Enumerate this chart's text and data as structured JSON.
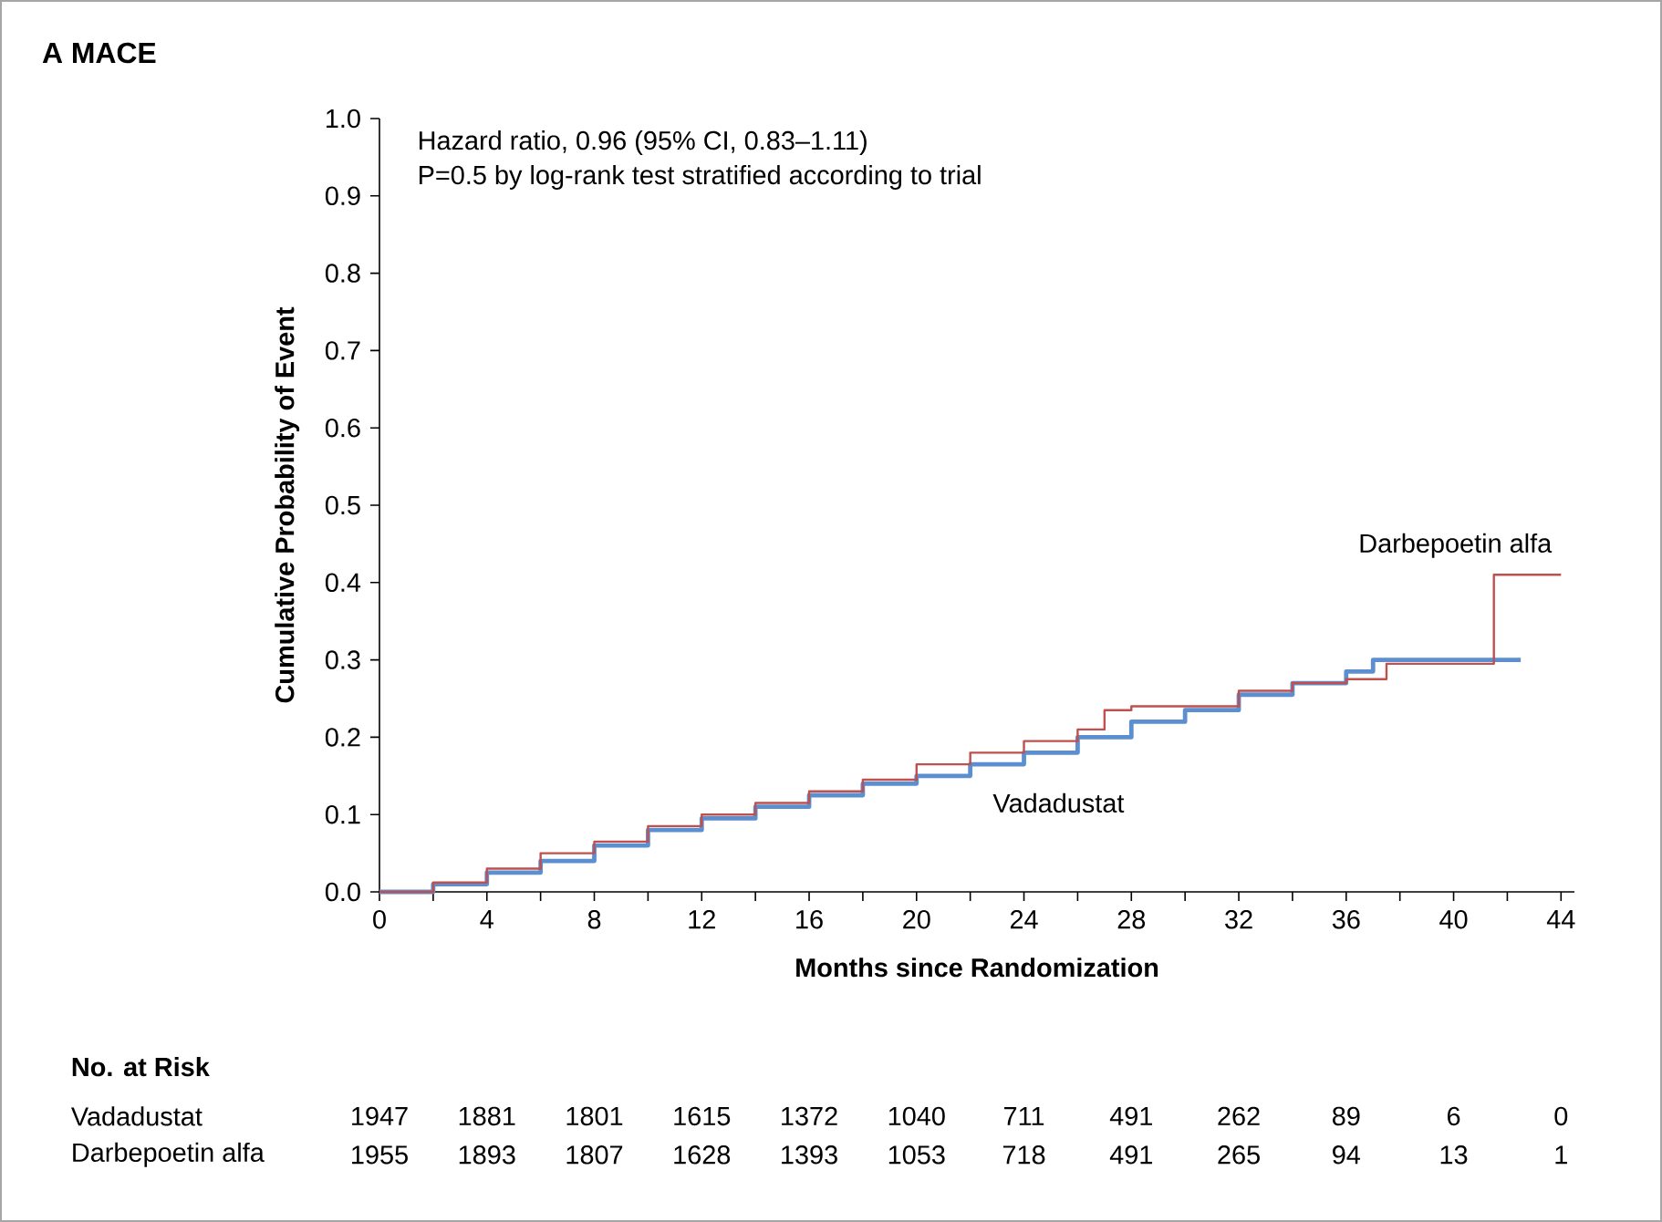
{
  "chart_data": {
    "type": "step",
    "title": "A MACE",
    "xlabel": "Months since Randomization",
    "ylabel": "Cumulative Probability of Event",
    "annotations": [
      "Hazard ratio, 0.96 (95% CI, 0.83–1.11)",
      "P=0.5 by log-rank test stratified according to trial",
      "No. at Risk",
      "1947",
      "1881",
      "1801",
      "1615",
      "1372",
      "1040",
      "711",
      "491",
      "262",
      "89",
      "6",
      "0",
      "1955",
      "1893",
      "1807",
      "1628",
      "1393",
      "1053",
      "718",
      "491",
      "265",
      "94",
      "13",
      "1"
    ],
    "xlim": [
      0,
      44.5
    ],
    "ylim": [
      0,
      1.0
    ],
    "xticks": [
      0,
      {
        "value": 2,
        "label": null
      },
      4,
      {
        "value": 6,
        "label": null
      },
      8,
      {
        "value": 10,
        "label": null
      },
      12,
      {
        "value": 14,
        "label": null
      },
      16,
      {
        "value": 18,
        "label": null
      },
      20,
      {
        "value": 22,
        "label": null
      },
      24,
      {
        "value": 26,
        "label": null
      },
      28,
      {
        "value": 30,
        "label": null
      },
      32,
      {
        "value": 34,
        "label": null
      },
      36,
      {
        "value": 38,
        "label": null
      },
      40,
      {
        "value": 42,
        "label": null
      },
      44
    ],
    "yticks": [
      {
        "value": 0,
        "label": "0.0"
      },
      {
        "value": 0.1,
        "label": "0.1"
      },
      {
        "value": 0.2,
        "label": "0.2"
      },
      {
        "value": 0.3,
        "label": "0.3"
      },
      {
        "value": 0.4,
        "label": "0.4"
      },
      {
        "value": 0.5,
        "label": "0.5"
      },
      {
        "value": 0.6,
        "label": "0.6"
      },
      {
        "value": 0.7,
        "label": "0.7"
      },
      {
        "value": 0.8,
        "label": "0.8"
      },
      {
        "value": 0.9,
        "label": "0.9"
      },
      {
        "value": 1.0,
        "label": "1.0"
      }
    ],
    "series": [
      {
        "name": "Vadadustat",
        "color": "#5b8fd0",
        "x": [
          0,
          2,
          4,
          6,
          8,
          10,
          12,
          14,
          16,
          18,
          20,
          22,
          24,
          26,
          28,
          30,
          32,
          34,
          36,
          37,
          42.5
        ],
        "values": [
          0,
          0.01,
          0.025,
          0.04,
          0.06,
          0.08,
          0.095,
          0.11,
          0.125,
          0.14,
          0.15,
          0.165,
          0.18,
          0.2,
          0.22,
          0.235,
          0.255,
          0.27,
          0.285,
          0.3,
          0.3
        ]
      },
      {
        "name": "Darbepoetin alfa",
        "color": "#c0504d",
        "x": [
          0,
          2,
          4,
          6,
          8,
          10,
          12,
          14,
          16,
          18,
          20,
          22,
          24,
          26,
          27,
          28,
          30,
          32,
          34,
          36,
          37.5,
          41.5,
          44
        ],
        "values": [
          0,
          0.012,
          0.03,
          0.05,
          0.065,
          0.085,
          0.1,
          0.115,
          0.13,
          0.145,
          0.165,
          0.18,
          0.195,
          0.21,
          0.235,
          0.24,
          0.24,
          0.26,
          0.27,
          0.275,
          0.295,
          0.41,
          0.41
        ]
      }
    ]
  }
}
